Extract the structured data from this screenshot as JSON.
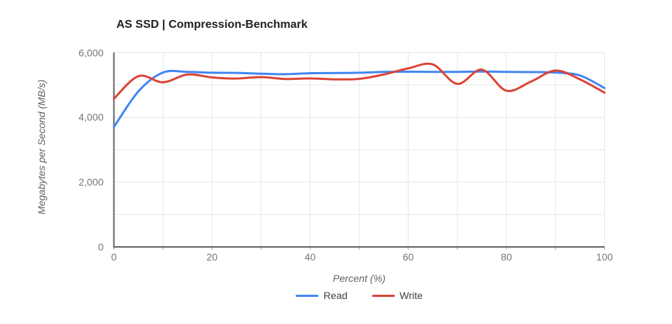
{
  "chart_data": {
    "type": "line",
    "smooth": true,
    "title": "AS SSD | Compression-Benchmark",
    "xlabel": "Percent (%)",
    "ylabel": "Megabytes per Second (MB/s)",
    "xlim": [
      0,
      100
    ],
    "ylim": [
      0,
      6000
    ],
    "grid": true,
    "x_grid_step": 10,
    "y_grid_step": 1000,
    "x_ticks": {
      "values": [
        0,
        20,
        40,
        60,
        80,
        100
      ],
      "labels": [
        "0",
        "20",
        "40",
        "60",
        "80",
        "100"
      ]
    },
    "y_ticks": {
      "values": [
        0,
        2000,
        4000,
        6000
      ],
      "labels": [
        "0",
        "2,000",
        "4,000",
        "6,000"
      ]
    },
    "legend_position": "bottom",
    "x": [
      0,
      5,
      10,
      15,
      20,
      25,
      30,
      35,
      40,
      45,
      50,
      55,
      60,
      65,
      70,
      75,
      80,
      85,
      90,
      95,
      100
    ],
    "series": [
      {
        "name": "Read",
        "color": "#4285f4",
        "values": [
          3700,
          4800,
          5380,
          5400,
          5375,
          5370,
          5345,
          5330,
          5360,
          5365,
          5375,
          5400,
          5405,
          5400,
          5400,
          5410,
          5400,
          5395,
          5380,
          5290,
          4900
        ]
      },
      {
        "name": "Write",
        "color": "#db4437",
        "values": [
          4570,
          5270,
          5080,
          5320,
          5230,
          5195,
          5240,
          5180,
          5200,
          5170,
          5185,
          5320,
          5510,
          5630,
          5030,
          5470,
          4820,
          5100,
          5440,
          5170,
          4760
        ]
      }
    ]
  },
  "colors": {
    "grid": "#e6e6e6",
    "axis": "#616161",
    "tick_mark": "#9e9e9e",
    "tick_label": "#757575",
    "axis_title": "#616161",
    "title": "#212121",
    "legend_text": "#3c4043",
    "background": "#ffffff"
  }
}
